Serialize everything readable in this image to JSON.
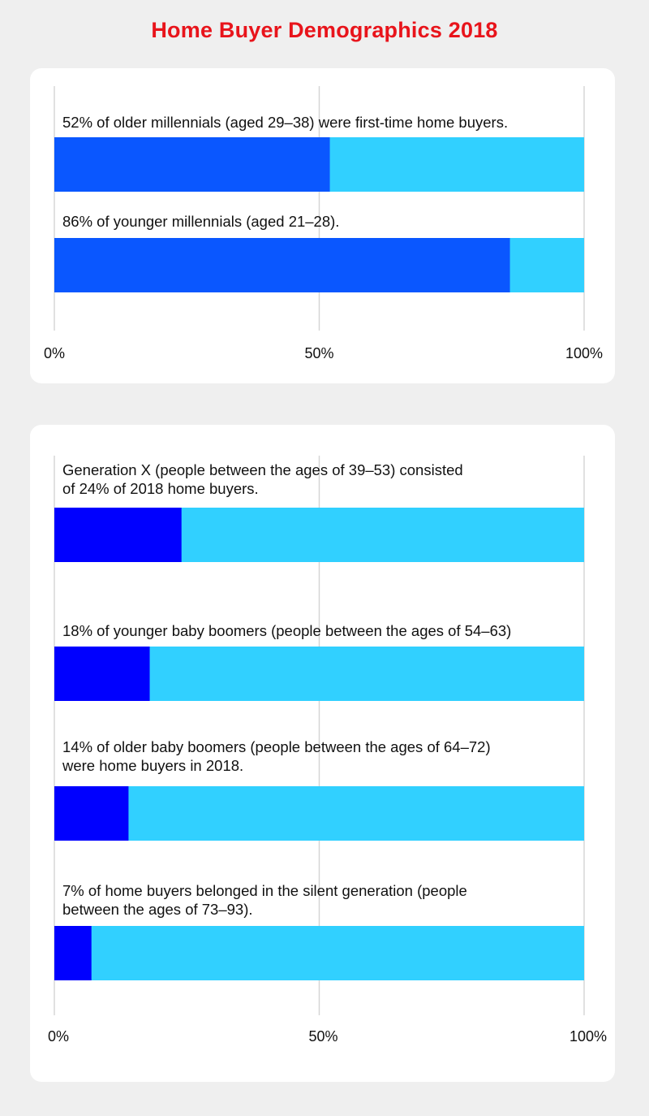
{
  "title": "Home Buyer Demographics 2018",
  "colors": {
    "title": "#e8141b",
    "millennial_bar": "#0a57ff",
    "other_bar": "#0000ff",
    "remainder": "#31d0ff",
    "background": "#efefef",
    "card": "#ffffff"
  },
  "chart_data": [
    {
      "type": "bar",
      "orientation": "horizontal",
      "stacked_to_100": true,
      "categories": [
        "52% of older millennials (aged 29–38) were first-time home buyers.",
        "86% of younger millennials (aged 21–28)."
      ],
      "values": [
        52,
        86
      ],
      "xlim": [
        0,
        100
      ],
      "ticks": [
        "0%",
        "50%",
        "100%"
      ],
      "grid": true
    },
    {
      "type": "bar",
      "orientation": "horizontal",
      "stacked_to_100": true,
      "categories": [
        "Generation X (people between the ages of 39–53) consisted\nof 24% of 2018 home buyers.",
        "18% of younger baby boomers (people between the ages of 54–63)",
        "14% of older baby boomers (people between the ages of 64–72)\nwere home buyers in 2018.",
        "7% of home buyers belonged in the silent generation (people\nbetween the ages of 73–93)."
      ],
      "values": [
        24,
        18,
        14,
        7
      ],
      "xlim": [
        0,
        100
      ],
      "ticks": [
        "0%",
        "50%",
        "100%"
      ],
      "grid": true
    }
  ]
}
